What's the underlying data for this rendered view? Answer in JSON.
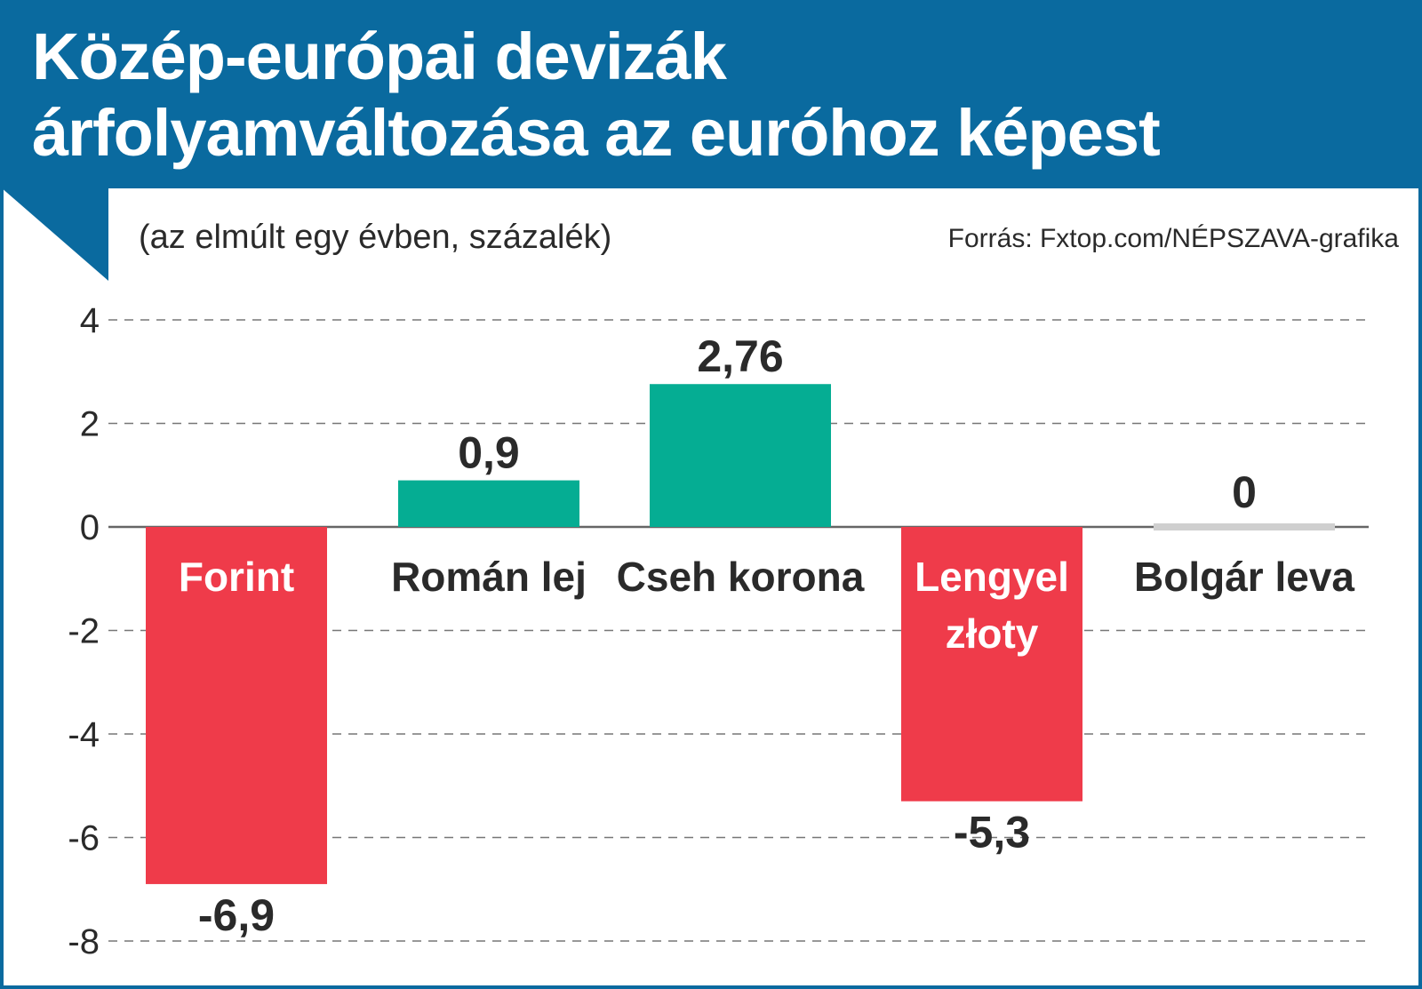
{
  "header": {
    "title_line1": "Közép-európai devizák",
    "title_line2": "árfolyamváltozása az euróhoz képest",
    "subtitle": "(az elmúlt egy évben, százalék)",
    "source": "Forrás: Fxtop.com/NÉPSZAVA-grafika"
  },
  "colors": {
    "header": "#0a6a9f",
    "positive": "#05ad93",
    "negative": "#ef3b4a",
    "zero": "#cfcfcf",
    "text": "#2a2a2a"
  },
  "chart_data": {
    "type": "bar",
    "title": "Közép-európai devizák árfolyamváltozása az euróhoz képest",
    "subtitle": "(az elmúlt egy évben, százalék)",
    "categories": [
      "Forint",
      "Román lej",
      "Cseh korona",
      "Lengyel złoty",
      "Bolgár leva"
    ],
    "category_lines": [
      [
        "Forint"
      ],
      [
        "Román lej"
      ],
      [
        "Cseh korona"
      ],
      [
        "Lengyel",
        "złoty"
      ],
      [
        "Bolgár leva"
      ]
    ],
    "values": [
      -6.9,
      0.9,
      2.76,
      -5.3,
      0
    ],
    "value_labels": [
      "-6,9",
      "0,9",
      "2,76",
      "-5,3",
      "0"
    ],
    "yticks": [
      4,
      2,
      0,
      -2,
      -4,
      -6,
      -8
    ],
    "ytick_labels": [
      "4",
      "2",
      "0",
      "-2",
      "-4",
      "-6",
      "-8"
    ],
    "ylim": [
      -8,
      4
    ],
    "grid": true,
    "xlabel": "",
    "ylabel": ""
  }
}
